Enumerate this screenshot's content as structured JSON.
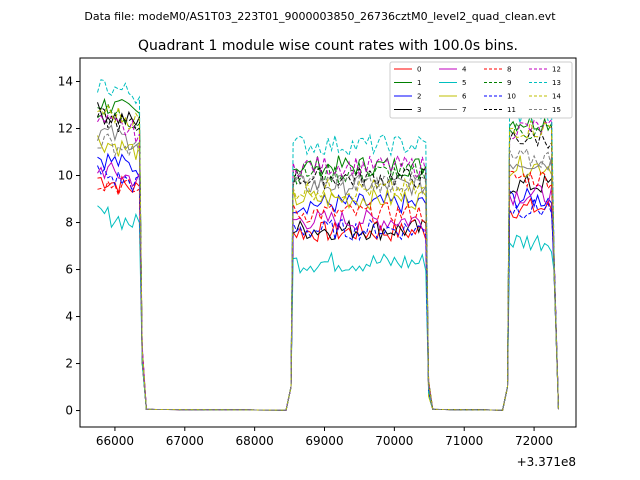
{
  "chart_data": {
    "type": "line",
    "suptitle": "Data file: modeM0/AS1T03_223T01_9000003850_26736cztM0_level2_quad_clean.evt",
    "title": "Quadrant 1 module wise count rates with 100.0s bins.",
    "xlabel": "",
    "ylabel": "",
    "x_offset_label": "+3.371e8",
    "xlim": [
      65500,
      72600
    ],
    "ylim": [
      -0.7,
      15.0
    ],
    "x_ticks": [
      66000,
      67000,
      68000,
      69000,
      70000,
      71000,
      72000
    ],
    "y_ticks": [
      0,
      2,
      4,
      6,
      8,
      10,
      12,
      14
    ],
    "x_tick_labels": [
      "66000",
      "67000",
      "68000",
      "69000",
      "70000",
      "71000",
      "72000"
    ],
    "y_tick_labels": [
      "0",
      "2",
      "4",
      "6",
      "8",
      "10",
      "12",
      "14"
    ],
    "legend": {
      "placement": "top-right",
      "columns": 4,
      "entries": [
        "0",
        "1",
        "2",
        "3",
        "4",
        "5",
        "6",
        "7",
        "8",
        "9",
        "10",
        "11",
        "12",
        "13",
        "14",
        "15"
      ]
    },
    "bin_seconds": 100,
    "series": [
      {
        "name": "0",
        "color": "#ff0000",
        "dash": "solid",
        "seg1": 9.4,
        "seg2": 7.6,
        "seg3": 8.6
      },
      {
        "name": "1",
        "color": "#008000",
        "dash": "solid",
        "seg1": 12.6,
        "seg2": 10.4,
        "seg3": 12.3
      },
      {
        "name": "2",
        "color": "#0000ff",
        "dash": "solid",
        "seg1": 10.3,
        "seg2": 8.8,
        "seg3": 9.0
      },
      {
        "name": "3",
        "color": "#000000",
        "dash": "solid",
        "seg1": 12.2,
        "seg2": 7.7,
        "seg3": 9.6
      },
      {
        "name": "4",
        "color": "#bf00bf",
        "dash": "solid",
        "seg1": 9.8,
        "seg2": 8.1,
        "seg3": 9.2
      },
      {
        "name": "5",
        "color": "#00bfbf",
        "dash": "solid",
        "seg1": 7.9,
        "seg2": 6.3,
        "seg3": 7.2
      },
      {
        "name": "6",
        "color": "#bfbf00",
        "dash": "solid",
        "seg1": 11.0,
        "seg2": 9.0,
        "seg3": 10.4
      },
      {
        "name": "7",
        "color": "#808080",
        "dash": "solid",
        "seg1": 11.4,
        "seg2": 9.6,
        "seg3": 10.6
      },
      {
        "name": "8",
        "color": "#ff0000",
        "dash": "dashed",
        "seg1": 9.3,
        "seg2": 8.4,
        "seg3": 9.9
      },
      {
        "name": "9",
        "color": "#008000",
        "dash": "dashed",
        "seg1": 12.3,
        "seg2": 10.1,
        "seg3": 11.9
      },
      {
        "name": "10",
        "color": "#0000ff",
        "dash": "dashed",
        "seg1": 9.6,
        "seg2": 7.7,
        "seg3": 8.6
      },
      {
        "name": "11",
        "color": "#000000",
        "dash": "dashed",
        "seg1": 12.0,
        "seg2": 9.9,
        "seg3": 11.6
      },
      {
        "name": "12",
        "color": "#bf00bf",
        "dash": "dashed",
        "seg1": 11.8,
        "seg2": 10.4,
        "seg3": 12.0
      },
      {
        "name": "13",
        "color": "#00bfbf",
        "dash": "dashed",
        "seg1": 13.4,
        "seg2": 11.3,
        "seg3": 12.6
      },
      {
        "name": "14",
        "color": "#bfbf00",
        "dash": "dashed",
        "seg1": 12.3,
        "seg2": 9.4,
        "seg3": 12.0
      },
      {
        "name": "15",
        "color": "#808080",
        "dash": "dashed",
        "seg1": 11.0,
        "seg2": 9.7,
        "seg3": 10.7
      }
    ],
    "time_segments": [
      {
        "start": 65750,
        "end": 66350,
        "fall_to": 2.0
      },
      {
        "start": 68550,
        "end": 70450,
        "fall_to": 0.6
      },
      {
        "start": 71650,
        "end": 72250,
        "fall_to": 5.5
      }
    ]
  }
}
